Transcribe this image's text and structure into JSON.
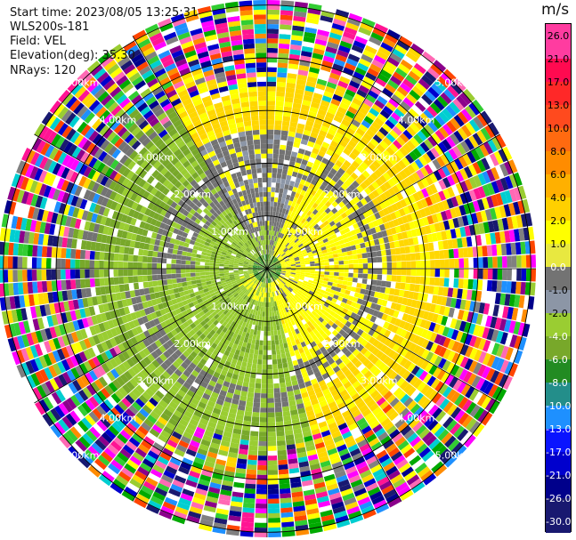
{
  "header": {
    "start_time": "Start time: 2023/08/05 13:25:31",
    "instrument": "WLS200s-181",
    "field": "Field: VEL",
    "elevation": "Elevation(deg): 35.30",
    "nrays": "NRays: 120"
  },
  "plot": {
    "type": "ppi",
    "field": "VEL",
    "nrays": 120,
    "range_rings_km": [
      1.0,
      2.0,
      3.0,
      4.0,
      5.0
    ],
    "ring_labels": [
      "1.00km",
      "2.00km",
      "3.00km",
      "4.00km",
      "5.00km"
    ],
    "max_range_km": 5.0
  },
  "colorbar": {
    "unit": "m/s",
    "labels": [
      "26.0",
      "21.0",
      "17.0",
      "13.0",
      "10.0",
      "8.0",
      "6.0",
      "4.0",
      "2.0",
      "1.0",
      "0.0",
      "-1.0",
      "-2.0",
      "-4.0",
      "-6.0",
      "-8.0",
      "-10.0",
      "-13.0",
      "-17.0",
      "-21.0",
      "-26.0",
      "-30.0"
    ],
    "colors": [
      "#ff3ca0",
      "#ff0a50",
      "#ff2828",
      "#ff4a1e",
      "#ff6a10",
      "#ff8c00",
      "#ffb000",
      "#ffd000",
      "#ffff00",
      "#e8e840",
      "#737373",
      "#8c96a6",
      "#9acd32",
      "#78a82a",
      "#228b22",
      "#238e8a",
      "#1e90ff",
      "#0a14ff",
      "#0000cd",
      "#00008b",
      "#191970"
    ]
  },
  "palette": {
    "ring": "#000000",
    "label": "#ffffff",
    "noise": [
      "#ff1493",
      "#ffd700",
      "#00aa00",
      "#0000cd",
      "#ff8c00",
      "#191970",
      "#ff00ff",
      "#00ced1",
      "#ff4500",
      "#32cd32",
      "#ffff00",
      "#ff69b4",
      "#00008b",
      "#808080",
      "#9acd32",
      "#1e90ff",
      "#8b008b",
      "#ffffff"
    ]
  }
}
